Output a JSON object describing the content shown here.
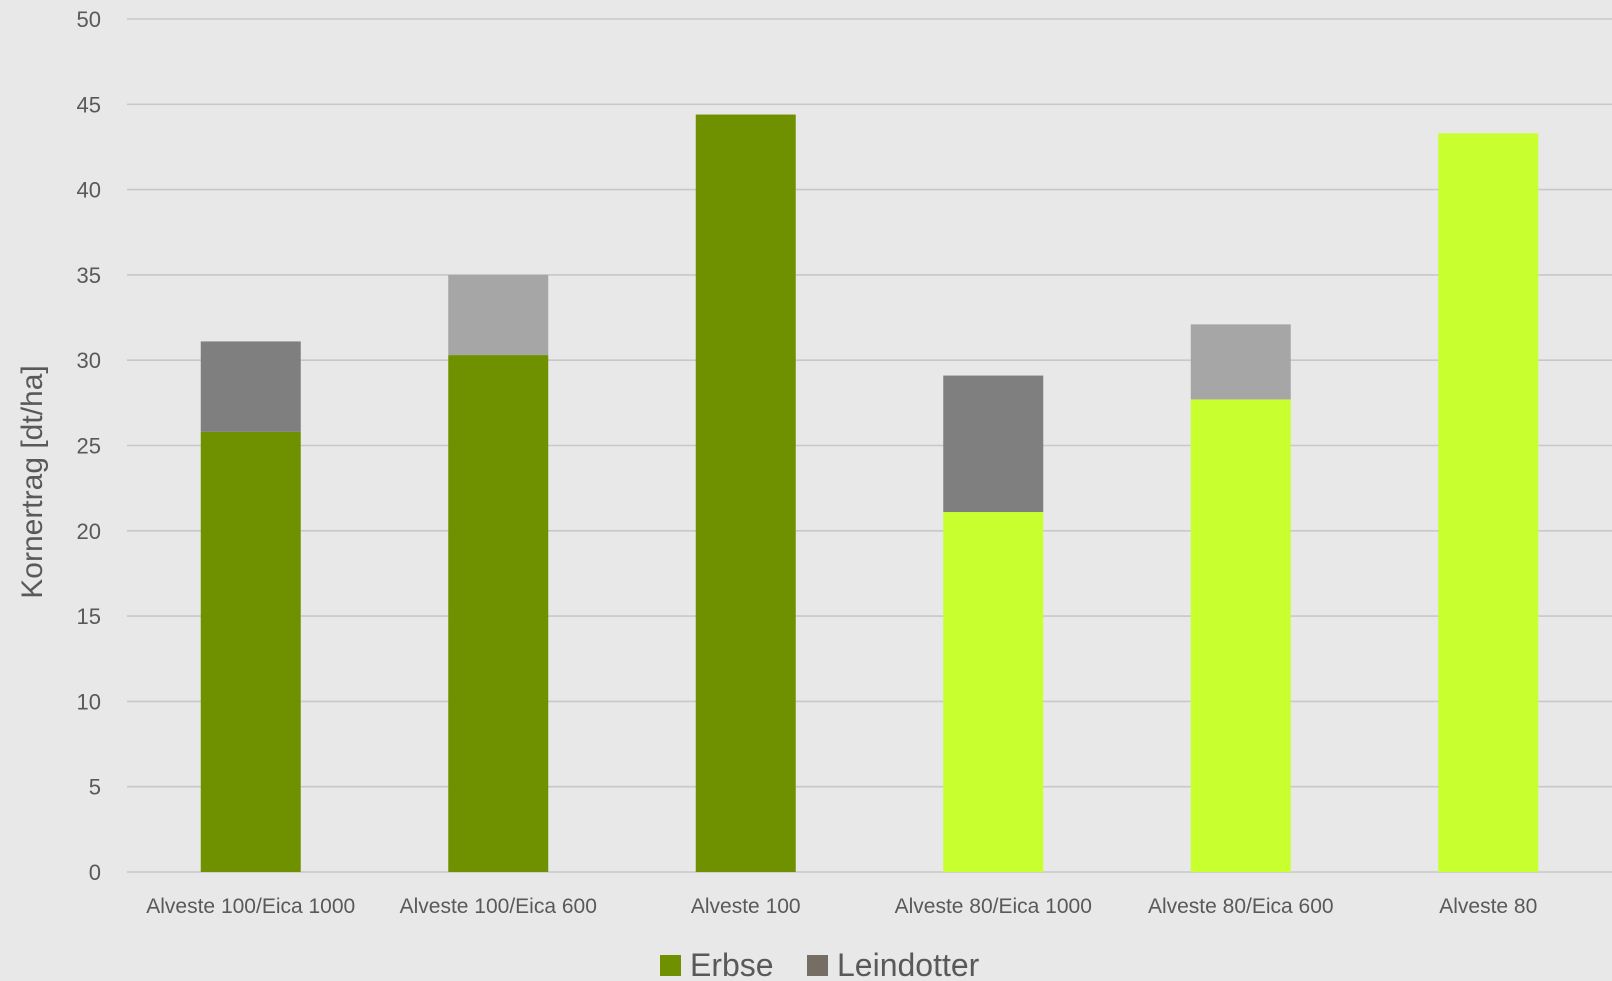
{
  "chart_data": {
    "type": "bar",
    "stacked": true,
    "title": "",
    "xlabel": "",
    "ylabel": "Kornertrag [dt/ha]",
    "ylim": [
      0,
      50
    ],
    "yticks": [
      0,
      5,
      10,
      15,
      20,
      25,
      30,
      35,
      40,
      45,
      50
    ],
    "grid": true,
    "legend_position": "bottom",
    "categories": [
      "Alveste 100/Eica 1000",
      "Alveste 100/Eica 600",
      "Alveste 100",
      "Alveste 80/Eica 1000",
      "Alveste 80/Eica 600",
      "Alveste 80"
    ],
    "series": [
      {
        "name": "Erbse",
        "values": [
          25.8,
          30.3,
          44.4,
          21.1,
          27.7,
          43.3
        ],
        "bar_colors": [
          "#6f9100",
          "#6f9100",
          "#6f9100",
          "#c8ff2e",
          "#c8ff2e",
          "#c8ff2e"
        ]
      },
      {
        "name": "Leindotter",
        "values": [
          5.3,
          4.7,
          0,
          8.0,
          4.4,
          0
        ],
        "bar_colors": [
          "#7f7f7f",
          "#a6a6a6",
          "#7f7f7f",
          "#7f7f7f",
          "#a6a6a6",
          "#a6a6a6"
        ]
      }
    ],
    "legend": [
      {
        "label": "Erbse",
        "color": "#6f9100"
      },
      {
        "label": "Leindotter",
        "color": "#766d64"
      }
    ]
  }
}
